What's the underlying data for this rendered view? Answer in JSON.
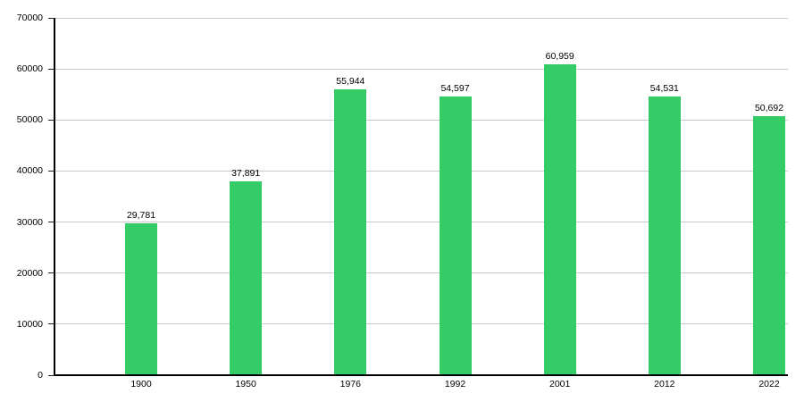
{
  "chart_data": {
    "type": "bar",
    "title": "",
    "xlabel": "",
    "ylabel": "",
    "categories": [
      "1900",
      "1950",
      "1976",
      "1992",
      "2001",
      "2012",
      "2022"
    ],
    "values": [
      29781,
      37891,
      55944,
      54597,
      60959,
      54531,
      50692
    ],
    "value_labels": [
      "29,781",
      "37,891",
      "55,944",
      "54,597",
      "60,959",
      "54,531",
      "50,692"
    ],
    "ylim": [
      0,
      70000
    ],
    "ytick_interval": 10000,
    "ytick_labels": [
      "0",
      "10000",
      "20000",
      "30000",
      "40000",
      "50000",
      "60000",
      "70000"
    ],
    "grid": true,
    "legend": "none",
    "colors": {
      "bar": "#33cc66",
      "grid": "#c9c9c9",
      "axis": "#000000",
      "text": "#000000"
    }
  }
}
